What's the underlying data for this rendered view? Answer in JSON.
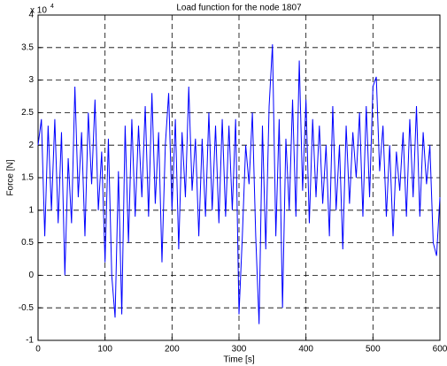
{
  "chart_data": {
    "type": "line",
    "title": "Load function for the node 1807",
    "xlabel": "Time [s]",
    "ylabel": "Force [N]",
    "y_multiplier": {
      "base": "x 10",
      "exponent": "4"
    },
    "xlim": [
      0,
      600
    ],
    "ylim": [
      -1,
      4
    ],
    "xticks": [
      0,
      100,
      200,
      300,
      400,
      500,
      600
    ],
    "yticks": [
      -1,
      -0.5,
      0,
      0.5,
      1,
      1.5,
      2,
      2.5,
      3,
      3.5,
      4
    ],
    "grid": true,
    "x": [
      0,
      5,
      10,
      15,
      20,
      25,
      30,
      35,
      40,
      45,
      50,
      55,
      60,
      65,
      70,
      75,
      80,
      85,
      90,
      95,
      100,
      105,
      110,
      115,
      120,
      125,
      130,
      135,
      140,
      145,
      150,
      155,
      160,
      165,
      170,
      175,
      180,
      185,
      190,
      195,
      200,
      205,
      210,
      215,
      220,
      225,
      230,
      235,
      240,
      245,
      250,
      255,
      260,
      265,
      270,
      275,
      280,
      285,
      290,
      295,
      300,
      305,
      310,
      315,
      320,
      325,
      330,
      335,
      340,
      345,
      350,
      355,
      360,
      365,
      370,
      375,
      380,
      385,
      390,
      395,
      400,
      405,
      410,
      415,
      420,
      425,
      430,
      435,
      440,
      445,
      450,
      455,
      460,
      465,
      470,
      475,
      480,
      485,
      490,
      495,
      500,
      505,
      510,
      515,
      520,
      525,
      530,
      535,
      540,
      545,
      550,
      555,
      560,
      565,
      570,
      575,
      580,
      585,
      590,
      595,
      600
    ],
    "series": [
      {
        "name": "Force",
        "color": "#0000ff",
        "values": [
          2.0,
          2.4,
          0.6,
          2.3,
          1.0,
          2.4,
          0.8,
          2.2,
          0.0,
          1.8,
          0.8,
          2.9,
          1.2,
          2.2,
          0.6,
          2.5,
          1.4,
          2.7,
          1.0,
          1.9,
          0.2,
          2.1,
          0.0,
          -0.65,
          1.6,
          -0.6,
          2.3,
          0.5,
          2.4,
          0.9,
          2.3,
          1.2,
          2.6,
          0.9,
          2.8,
          1.1,
          2.2,
          0.2,
          2.0,
          2.8,
          1.0,
          2.4,
          0.4,
          2.2,
          1.2,
          2.9,
          1.3,
          2.1,
          0.6,
          2.1,
          0.9,
          2.5,
          1.0,
          2.3,
          0.8,
          2.4,
          0.9,
          2.3,
          1.0,
          2.4,
          -0.6,
          0.6,
          2.0,
          1.4,
          2.5,
          0.6,
          -0.75,
          2.3,
          0.4,
          2.6,
          3.55,
          0.6,
          2.4,
          -0.5,
          2.1,
          1.0,
          2.7,
          0.9,
          3.3,
          1.3,
          2.7,
          0.8,
          2.4,
          1.2,
          2.3,
          1.1,
          2.0,
          0.6,
          2.6,
          1.0,
          2.0,
          0.4,
          2.3,
          1.1,
          2.2,
          1.5,
          2.5,
          0.9,
          2.6,
          1.2,
          2.9,
          3.05,
          1.6,
          2.3,
          0.9,
          2.0,
          0.6,
          1.9,
          1.3,
          2.2,
          0.9,
          2.4,
          1.2,
          2.6,
          0.9,
          2.2,
          1.4,
          2.0,
          0.5,
          0.3,
          1.2
        ]
      }
    ]
  }
}
